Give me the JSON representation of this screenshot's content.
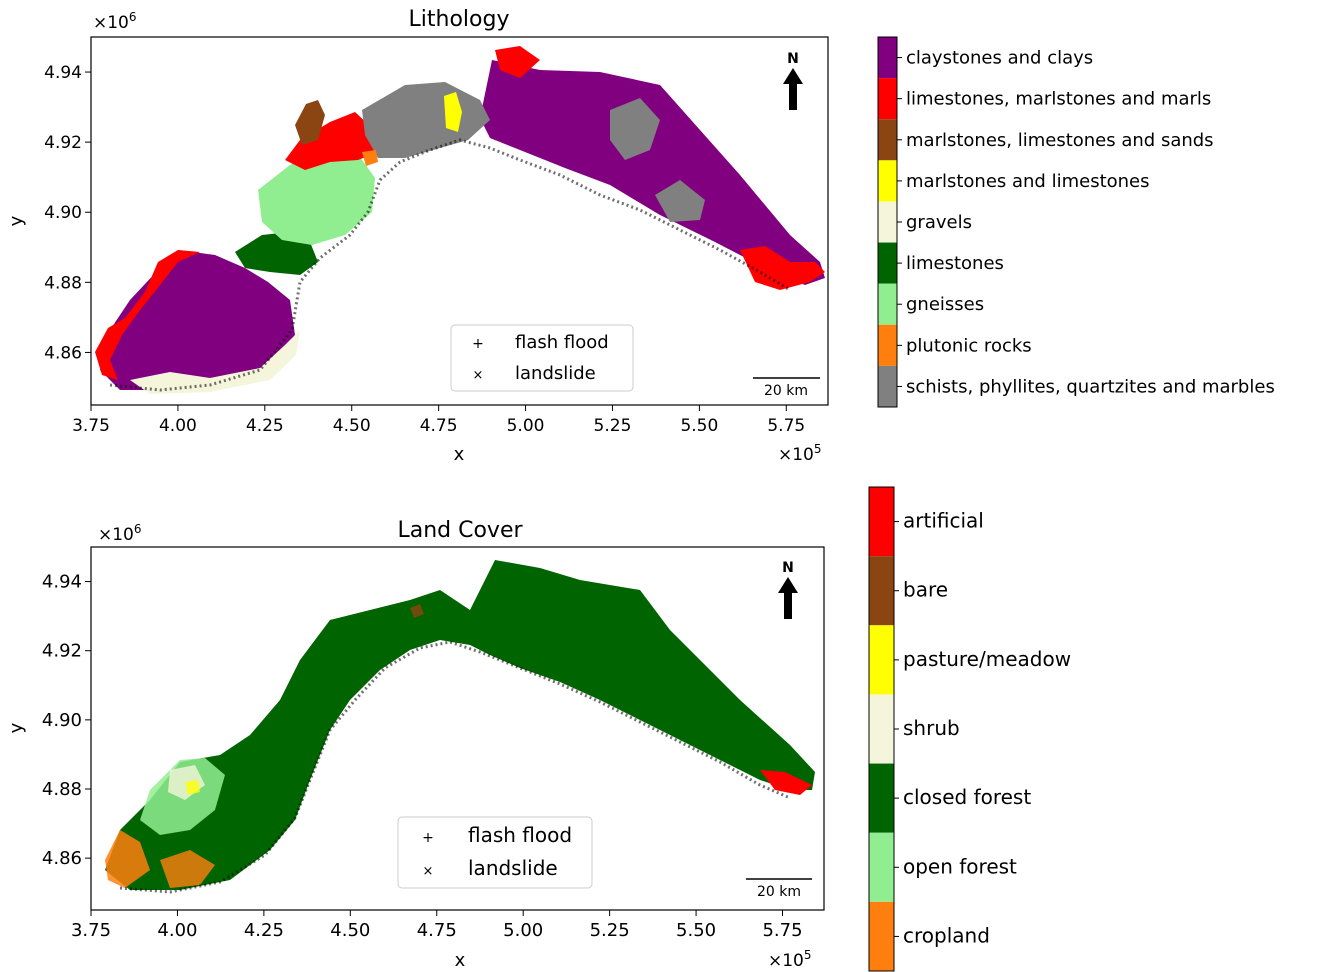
{
  "maps": [
    {
      "title": "Lithology",
      "xlabel": "x",
      "ylabel": "y",
      "x_multiplier": "×10",
      "x_multiplier_exp": "5",
      "y_multiplier": "×10",
      "y_multiplier_exp": "6",
      "xlim": [
        3.75,
        5.87
      ],
      "ylim": [
        4.845,
        4.95
      ],
      "xticks": [
        "3.75",
        "4.00",
        "4.25",
        "4.50",
        "4.75",
        "5.00",
        "5.25",
        "5.50",
        "5.75"
      ],
      "xtick_values": [
        3.75,
        4.0,
        4.25,
        4.5,
        4.75,
        5.0,
        5.25,
        5.5,
        5.75
      ],
      "yticks": [
        "4.86",
        "4.88",
        "4.90",
        "4.92",
        "4.94"
      ],
      "ytick_values": [
        4.86,
        4.88,
        4.9,
        4.92,
        4.94
      ],
      "north_label": "N",
      "scale_bar_label": "20 km",
      "legend": [
        {
          "label": "flash flood",
          "marker": "+",
          "color": "#e7a6e2"
        },
        {
          "label": "landslide",
          "marker": "×",
          "color": "#bdbdbd"
        }
      ],
      "legend_placement": "lower-center",
      "colorbar": [
        {
          "label": "claystones and clays",
          "color": "#800080"
        },
        {
          "label": "limestones, marlstones and marls",
          "color": "#ff0000"
        },
        {
          "label": "marlstones, limestones and sands",
          "color": "#8b4513"
        },
        {
          "label": "marlstones and limestones",
          "color": "#ffff00"
        },
        {
          "label": "gravels",
          "color": "#f5f5dc"
        },
        {
          "label": "limestones",
          "color": "#006400"
        },
        {
          "label": "gneisses",
          "color": "#90ee90"
        },
        {
          "label": "plutonic rocks",
          "color": "#ff7f0e"
        },
        {
          "label": "schists, phyllites, quartzites and marbles",
          "color": "#808080"
        }
      ]
    },
    {
      "title": "Land Cover",
      "xlabel": "x",
      "ylabel": "y",
      "x_multiplier": "×10",
      "x_multiplier_exp": "5",
      "y_multiplier": "×10",
      "y_multiplier_exp": "6",
      "xlim": [
        3.75,
        5.87
      ],
      "ylim": [
        4.845,
        4.95
      ],
      "xticks": [
        "3.75",
        "4.00",
        "4.25",
        "4.50",
        "4.75",
        "5.00",
        "5.25",
        "5.50",
        "5.75"
      ],
      "xtick_values": [
        3.75,
        4.0,
        4.25,
        4.5,
        4.75,
        5.0,
        5.25,
        5.5,
        5.75
      ],
      "yticks": [
        "4.86",
        "4.88",
        "4.90",
        "4.92",
        "4.94"
      ],
      "ytick_values": [
        4.86,
        4.88,
        4.9,
        4.92,
        4.94
      ],
      "north_label": "N",
      "scale_bar_label": "20 km",
      "legend": [
        {
          "label": "flash flood",
          "marker": "+",
          "color": "#e7a6e2"
        },
        {
          "label": "landslide",
          "marker": "×",
          "color": "#bdbdbd"
        }
      ],
      "legend_placement": "lower-center",
      "colorbar": [
        {
          "label": "artificial",
          "color": "#ff0000"
        },
        {
          "label": "bare",
          "color": "#8b4513"
        },
        {
          "label": "pasture/meadow",
          "color": "#ffff00"
        },
        {
          "label": "shrub",
          "color": "#f5f5dc"
        },
        {
          "label": "closed forest",
          "color": "#006400"
        },
        {
          "label": "open forest",
          "color": "#90ee90"
        },
        {
          "label": "cropland",
          "color": "#ff7f0e"
        }
      ]
    }
  ]
}
